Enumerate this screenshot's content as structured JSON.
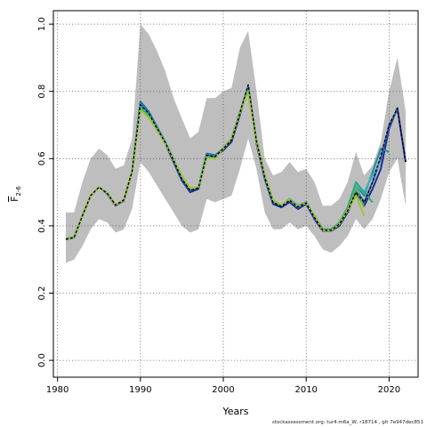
{
  "chart_data": {
    "type": "line",
    "title": "",
    "xlabel": "Years",
    "ylabel_main": "F",
    "ylabel_sub": "2-6",
    "xlim": [
      1979.5,
      2023.5
    ],
    "ylim": [
      -0.05,
      1.04
    ],
    "xticks": [
      1980,
      1990,
      2000,
      2010,
      2020
    ],
    "yticks": [
      0.0,
      0.2,
      0.4,
      0.6,
      0.8,
      1.0
    ],
    "xtick_labels": [
      "1980",
      "1990",
      "2000",
      "2010",
      "2020"
    ],
    "ytick_labels": [
      "0.0",
      "0.2",
      "0.4",
      "0.6",
      "0.8",
      "1.0"
    ],
    "grid": true,
    "confidence_band": {
      "color": "#bebebe",
      "x": [
        1981,
        1982,
        1983,
        1984,
        1985,
        1986,
        1987,
        1988,
        1989,
        1990,
        1991,
        1992,
        1993,
        1994,
        1995,
        1996,
        1997,
        1998,
        1999,
        2000,
        2001,
        2002,
        2003,
        2004,
        2005,
        2006,
        2007,
        2008,
        2009,
        2010,
        2011,
        2012,
        2013,
        2014,
        2015,
        2016,
        2017,
        2018,
        2019,
        2020,
        2021,
        2022
      ],
      "upper": [
        0.44,
        0.44,
        0.53,
        0.6,
        0.63,
        0.61,
        0.57,
        0.58,
        0.66,
        1.0,
        0.97,
        0.92,
        0.86,
        0.78,
        0.72,
        0.66,
        0.68,
        0.78,
        0.78,
        0.8,
        0.81,
        0.93,
        0.98,
        0.8,
        0.6,
        0.55,
        0.56,
        0.59,
        0.56,
        0.57,
        0.53,
        0.46,
        0.46,
        0.48,
        0.53,
        0.62,
        0.55,
        0.58,
        0.65,
        0.8,
        0.9,
        0.74
      ],
      "lower": [
        0.29,
        0.3,
        0.34,
        0.39,
        0.42,
        0.41,
        0.38,
        0.39,
        0.45,
        0.59,
        0.56,
        0.52,
        0.48,
        0.44,
        0.4,
        0.38,
        0.39,
        0.48,
        0.47,
        0.48,
        0.49,
        0.57,
        0.66,
        0.57,
        0.44,
        0.39,
        0.39,
        0.41,
        0.39,
        0.4,
        0.37,
        0.33,
        0.32,
        0.34,
        0.37,
        0.42,
        0.39,
        0.42,
        0.48,
        0.56,
        0.6,
        0.46
      ]
    },
    "series": [
      {
        "color": "#1f2a9a",
        "x": [
          1981,
          1982,
          1983,
          1984,
          1985,
          1986,
          1987,
          1988,
          1989,
          1990,
          1991,
          1992,
          1993,
          1994,
          1995,
          1996,
          1997,
          1998,
          1999,
          2000,
          2001,
          2002,
          2003,
          2004,
          2005,
          2006,
          2007,
          2008,
          2009,
          2010,
          2011,
          2012,
          2013,
          2014,
          2015,
          2016,
          2017,
          2018,
          2019,
          2020,
          2021,
          2022
        ],
        "values": [
          0.36,
          0.365,
          0.43,
          0.49,
          0.515,
          0.495,
          0.46,
          0.475,
          0.56,
          0.765,
          0.735,
          0.69,
          0.645,
          0.59,
          0.535,
          0.5,
          0.51,
          0.61,
          0.605,
          0.625,
          0.65,
          0.73,
          0.815,
          0.645,
          0.54,
          0.465,
          0.455,
          0.47,
          0.45,
          0.465,
          0.42,
          0.385,
          0.385,
          0.4,
          0.44,
          0.5,
          0.46,
          0.51,
          0.57,
          0.69,
          0.75,
          0.59
        ]
      },
      {
        "color": "#2a6aa8",
        "x": [
          1981,
          1982,
          1983,
          1984,
          1985,
          1986,
          1987,
          1988,
          1989,
          1990,
          1991,
          1992,
          1993,
          1994,
          1995,
          1996,
          1997,
          1998,
          1999,
          2000,
          2001,
          2002,
          2003,
          2004,
          2005,
          2006,
          2007,
          2008,
          2009,
          2010,
          2011,
          2012,
          2013,
          2014,
          2015,
          2016,
          2017,
          2018,
          2019,
          2020,
          2021
        ],
        "values": [
          0.362,
          0.367,
          0.43,
          0.49,
          0.515,
          0.497,
          0.462,
          0.477,
          0.562,
          0.77,
          0.74,
          0.695,
          0.65,
          0.595,
          0.54,
          0.505,
          0.515,
          0.615,
          0.61,
          0.63,
          0.655,
          0.735,
          0.815,
          0.65,
          0.545,
          0.47,
          0.46,
          0.475,
          0.455,
          0.47,
          0.425,
          0.39,
          0.39,
          0.405,
          0.445,
          0.51,
          0.47,
          0.53,
          0.6,
          0.7,
          0.745
        ]
      },
      {
        "color": "#1e8ea0",
        "x": [
          1981,
          1982,
          1983,
          1984,
          1985,
          1986,
          1987,
          1988,
          1989,
          1990,
          1991,
          1992,
          1993,
          1994,
          1995,
          1996,
          1997,
          1998,
          1999,
          2000,
          2001,
          2002,
          2003,
          2004,
          2005,
          2006,
          2007,
          2008,
          2009,
          2010,
          2011,
          2012,
          2013,
          2014,
          2015,
          2016,
          2017,
          2018,
          2019,
          2020
        ],
        "values": [
          0.36,
          0.366,
          0.43,
          0.49,
          0.515,
          0.497,
          0.462,
          0.477,
          0.562,
          0.762,
          0.735,
          0.69,
          0.648,
          0.595,
          0.545,
          0.51,
          0.515,
          0.61,
          0.605,
          0.63,
          0.66,
          0.74,
          0.81,
          0.655,
          0.55,
          0.475,
          0.46,
          0.48,
          0.46,
          0.47,
          0.43,
          0.39,
          0.39,
          0.41,
          0.45,
          0.52,
          0.49,
          0.56,
          0.63,
          0.62
        ]
      },
      {
        "color": "#38b2c8",
        "x": [
          1981,
          1982,
          1983,
          1984,
          1985,
          1986,
          1987,
          1988,
          1989,
          1990,
          1991,
          1992,
          1993,
          1994,
          1995,
          1996,
          1997,
          1998,
          1999,
          2000,
          2001,
          2002,
          2003,
          2004,
          2005,
          2006,
          2007,
          2008,
          2009,
          2010,
          2011,
          2012,
          2013,
          2014,
          2015,
          2016,
          2017,
          2018,
          2019
        ],
        "values": [
          0.36,
          0.366,
          0.43,
          0.49,
          0.515,
          0.497,
          0.462,
          0.477,
          0.562,
          0.755,
          0.73,
          0.69,
          0.65,
          0.6,
          0.548,
          0.51,
          0.515,
          0.605,
          0.6,
          0.632,
          0.66,
          0.74,
          0.805,
          0.652,
          0.548,
          0.474,
          0.46,
          0.478,
          0.458,
          0.468,
          0.428,
          0.388,
          0.388,
          0.41,
          0.455,
          0.52,
          0.5,
          0.55,
          0.59
        ]
      },
      {
        "color": "#2fa580",
        "x": [
          1981,
          1982,
          1983,
          1984,
          1985,
          1986,
          1987,
          1988,
          1989,
          1990,
          1991,
          1992,
          1993,
          1994,
          1995,
          1996,
          1997,
          1998,
          1999,
          2000,
          2001,
          2002,
          2003,
          2004,
          2005,
          2006,
          2007,
          2008,
          2009,
          2010,
          2011,
          2012,
          2013,
          2014,
          2015,
          2016,
          2017,
          2018
        ],
        "values": [
          0.36,
          0.366,
          0.43,
          0.49,
          0.515,
          0.497,
          0.462,
          0.477,
          0.562,
          0.752,
          0.728,
          0.688,
          0.648,
          0.598,
          0.548,
          0.51,
          0.515,
          0.605,
          0.6,
          0.632,
          0.66,
          0.738,
          0.805,
          0.652,
          0.55,
          0.476,
          0.462,
          0.478,
          0.458,
          0.468,
          0.43,
          0.39,
          0.388,
          0.41,
          0.455,
          0.53,
          0.5,
          0.47
        ]
      },
      {
        "color": "#5cb84a",
        "x": [
          1981,
          1982,
          1983,
          1984,
          1985,
          1986,
          1987,
          1988,
          1989,
          1990,
          1991,
          1992,
          1993,
          1994,
          1995,
          1996,
          1997,
          1998,
          1999,
          2000,
          2001,
          2002,
          2003,
          2004,
          2005,
          2006,
          2007,
          2008,
          2009,
          2010,
          2011,
          2012,
          2013,
          2014,
          2015,
          2016,
          2017
        ],
        "values": [
          0.36,
          0.366,
          0.43,
          0.49,
          0.515,
          0.497,
          0.462,
          0.477,
          0.562,
          0.748,
          0.725,
          0.685,
          0.645,
          0.598,
          0.548,
          0.512,
          0.515,
          0.605,
          0.6,
          0.632,
          0.66,
          0.738,
          0.8,
          0.65,
          0.55,
          0.476,
          0.462,
          0.478,
          0.458,
          0.468,
          0.43,
          0.388,
          0.388,
          0.408,
          0.45,
          0.51,
          0.455
        ]
      },
      {
        "color": "#a3c234",
        "x": [
          1981,
          1982,
          1983,
          1984,
          1985,
          1986,
          1987,
          1988,
          1989,
          1990,
          1991,
          1992,
          1993,
          1994,
          1995,
          1996,
          1997,
          1998,
          1999,
          2000,
          2001,
          2002,
          2003,
          2004,
          2005,
          2006,
          2007,
          2008,
          2009,
          2010,
          2011,
          2012,
          2013,
          2014,
          2015,
          2016,
          2017
        ],
        "values": [
          0.36,
          0.366,
          0.43,
          0.49,
          0.515,
          0.497,
          0.462,
          0.477,
          0.56,
          0.745,
          0.722,
          0.684,
          0.645,
          0.598,
          0.548,
          0.512,
          0.515,
          0.602,
          0.6,
          0.63,
          0.66,
          0.736,
          0.798,
          0.65,
          0.55,
          0.476,
          0.462,
          0.478,
          0.458,
          0.468,
          0.43,
          0.386,
          0.386,
          0.405,
          0.445,
          0.49,
          0.43
        ]
      },
      {
        "color": "#000000",
        "dashed": true,
        "x": [
          1981,
          1982,
          1983,
          1984,
          1985,
          1986,
          1987,
          1988,
          1989,
          1990,
          1991,
          1992,
          1993,
          1994,
          1995,
          1996,
          1997,
          1998,
          1999,
          2000,
          2001,
          2002,
          2003,
          2004,
          2005,
          2006,
          2007,
          2008,
          2009,
          2010,
          2011,
          2012,
          2013,
          2014,
          2015,
          2016,
          2017,
          2018,
          2019,
          2020,
          2021,
          2022
        ],
        "values": [
          0.36,
          0.365,
          0.43,
          0.49,
          0.515,
          0.497,
          0.462,
          0.477,
          0.562,
          0.76,
          0.735,
          0.69,
          0.648,
          0.595,
          0.54,
          0.505,
          0.513,
          0.61,
          0.605,
          0.63,
          0.655,
          0.735,
          0.82,
          0.652,
          0.545,
          0.47,
          0.458,
          0.476,
          0.456,
          0.468,
          0.425,
          0.387,
          0.387,
          0.405,
          0.445,
          0.5,
          0.47,
          0.53,
          0.61,
          0.7,
          0.75,
          0.59
        ]
      }
    ]
  },
  "footer": "stockassessment.org, tur4.m6a_W, r18714 , git 7e947dec851"
}
